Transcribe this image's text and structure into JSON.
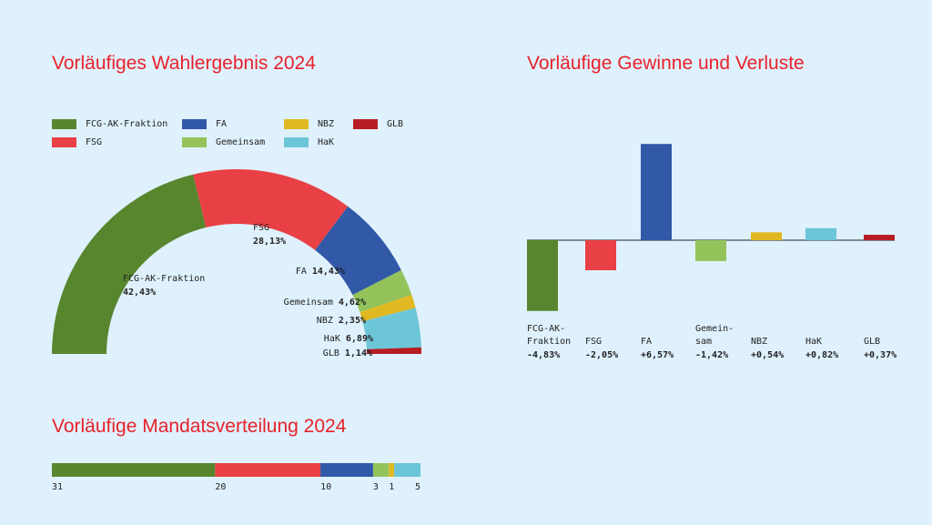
{
  "titles": {
    "donut": "Vorläufiges Wahlergebnis 2024",
    "gains": "Vorläufige Gewinne und Verluste",
    "seats": "Vorläufige Mandatsverteilung 2024"
  },
  "chart_data": [
    {
      "type": "pie",
      "variant": "semi-donut",
      "title": "Vorläufiges Wahlergebnis 2024",
      "legend": "top",
      "slices": [
        {
          "name": "FCG-AK-Fraktion",
          "value": 42.43,
          "label": "42,43%",
          "color": "#58862f"
        },
        {
          "name": "FSG",
          "value": 28.13,
          "label": "28,13%",
          "color": "#e84045"
        },
        {
          "name": "FA",
          "value": 14.43,
          "label": "14,43%",
          "color": "#3258a8"
        },
        {
          "name": "Gemeinsam",
          "value": 4.62,
          "label": "4,62%",
          "color": "#93c35a"
        },
        {
          "name": "NBZ",
          "value": 2.35,
          "label": "2,35%",
          "color": "#e0b922"
        },
        {
          "name": "HaK",
          "value": 6.89,
          "label": "6,89%",
          "color": "#6cc6d8"
        },
        {
          "name": "GLB",
          "value": 1.14,
          "label": "1,14%",
          "color": "#b81d24"
        }
      ]
    },
    {
      "type": "bar",
      "title": "Vorläufige Gewinne und Verluste",
      "ylim": [
        -5,
        7
      ],
      "categories": [
        "FCG-AK-\nFraktion",
        "FSG",
        "FA",
        "Gemein-\nsam",
        "NBZ",
        "HaK",
        "GLB"
      ],
      "values": [
        -4.83,
        -2.05,
        6.57,
        -1.42,
        0.54,
        0.82,
        0.37
      ],
      "labels": [
        "-4,83%",
        "-2,05%",
        "+6,57%",
        "-1,42%",
        "+0,54%",
        "+0,82%",
        "+0,37%"
      ],
      "colors": [
        "#58862f",
        "#e84045",
        "#3258a8",
        "#93c35a",
        "#e0b922",
        "#6cc6d8",
        "#b81d24"
      ]
    },
    {
      "type": "bar",
      "variant": "stacked-horizontal",
      "title": "Vorläufige Mandatsverteilung 2024",
      "categories": [
        "FCG-AK-Fraktion",
        "FSG",
        "FA",
        "Gemeinsam",
        "NBZ",
        "HaK"
      ],
      "values": [
        31,
        20,
        10,
        3,
        1,
        5
      ],
      "colors": [
        "#58862f",
        "#e84045",
        "#3258a8",
        "#93c35a",
        "#e0b922",
        "#6cc6d8"
      ]
    }
  ]
}
